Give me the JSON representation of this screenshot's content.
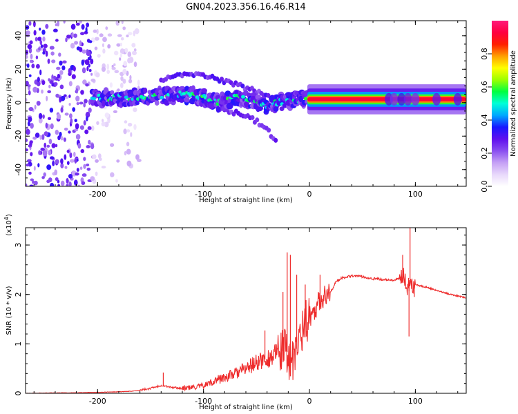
{
  "title": "GN04.2023.356.16.46.R14",
  "chart_data": [
    {
      "type": "heatmap",
      "xlabel": "Height of straight line (km)",
      "ylabel": "Frequency (Hz)",
      "xlim": [
        -268,
        148
      ],
      "ylim": [
        -50,
        49
      ],
      "x_ticks": [
        -200,
        -100,
        0,
        100
      ],
      "x_tick_labels": [
        "-200",
        "-100",
        "0",
        "100"
      ],
      "y_ticks": [
        -40,
        -20,
        0,
        20,
        40
      ],
      "y_tick_labels": [
        "-40",
        "-20",
        "0",
        "20",
        "40"
      ],
      "colorbar": {
        "label": "Normalized spectral amplitude",
        "range": [
          0,
          1
        ],
        "ticks": [
          0.0,
          0.2,
          0.4,
          0.6,
          0.8
        ],
        "tick_labels": [
          "0.0",
          "0.2",
          "0.4",
          "0.6",
          "0.8"
        ],
        "colormap_stops": [
          "#ffffff",
          "#e8d8fb",
          "#c5a0f5",
          "#8a4ff0",
          "#6010ee",
          "#1818ff",
          "#00a8ff",
          "#00ffd8",
          "#00ff40",
          "#9cff00",
          "#ffff00",
          "#ffa000",
          "#ff2000",
          "#ff0040",
          "#ff1a7a"
        ]
      },
      "features": [
        {
          "name": "scatter_noise",
          "x_range": [
            -268,
            -160
          ],
          "freq_range": [
            -50,
            49
          ],
          "amplitude": 0.1
        },
        {
          "name": "main_band",
          "points": [
            [
              -205,
              3
            ],
            [
              -180,
              3
            ],
            [
              -150,
              4
            ],
            [
              -120,
              5
            ],
            [
              -100,
              3
            ],
            [
              -85,
              0
            ],
            [
              -70,
              3
            ],
            [
              -55,
              1
            ],
            [
              -45,
              -1
            ],
            [
              -38,
              -3
            ],
            [
              -32,
              0
            ],
            [
              -20,
              1
            ],
            [
              -5,
              2
            ],
            [
              0,
              2
            ],
            [
              40,
              2
            ],
            [
              148,
              2
            ]
          ],
          "amplitude": [
            0.25,
            0.5,
            0.9
          ]
        },
        {
          "name": "upper_arc",
          "points": [
            [
              -140,
              14
            ],
            [
              -120,
              17
            ],
            [
              -100,
              16
            ],
            [
              -80,
              13
            ],
            [
              -60,
              9
            ],
            [
              -45,
              6
            ],
            [
              -35,
              3
            ]
          ],
          "amplitude": 0.25
        },
        {
          "name": "lower_arc",
          "points": [
            [
              -100,
              0
            ],
            [
              -80,
              -4
            ],
            [
              -60,
              -8
            ],
            [
              -45,
              -13
            ],
            [
              -35,
              -20
            ],
            [
              -30,
              -23
            ]
          ],
          "amplitude": 0.25
        }
      ]
    },
    {
      "type": "line",
      "xlabel": "Height of straight line (km)",
      "ylabel": "SNR (10 * v/v)",
      "y_multiplier_label": "(x10",
      "y_multiplier_exp": "4",
      "y_multiplier_close": ")",
      "xlim": [
        -268,
        148
      ],
      "ylim": [
        0,
        3.35
      ],
      "x_ticks": [
        -200,
        -100,
        0,
        100
      ],
      "x_tick_labels": [
        "-200",
        "-100",
        "0",
        "100"
      ],
      "y_ticks": [
        0,
        1,
        2,
        3
      ],
      "y_tick_labels": [
        "0",
        "1",
        "2",
        "3"
      ],
      "line_color": "#ee2b2b",
      "x": [
        -268,
        -250,
        -220,
        -200,
        -180,
        -170,
        -160,
        -150,
        -140,
        -130,
        -120,
        -110,
        -100,
        -90,
        -80,
        -70,
        -60,
        -50,
        -40,
        -30,
        -25,
        -22,
        -19,
        -15,
        -10,
        -5,
        0,
        5,
        10,
        20,
        25,
        30,
        40,
        50,
        60,
        70,
        80,
        85,
        88,
        90,
        92,
        95,
        98,
        100,
        105,
        110,
        120,
        130,
        148
      ],
      "y": [
        0.0,
        0.005,
        0.01,
        0.02,
        0.03,
        0.04,
        0.06,
        0.1,
        0.16,
        0.12,
        0.1,
        0.12,
        0.15,
        0.25,
        0.32,
        0.4,
        0.5,
        0.62,
        0.7,
        0.8,
        0.85,
        0.9,
        0.7,
        0.6,
        1.1,
        1.4,
        1.55,
        1.7,
        1.9,
        2.05,
        2.25,
        2.33,
        2.38,
        2.36,
        2.32,
        2.3,
        2.28,
        2.32,
        2.4,
        2.35,
        2.1,
        2.3,
        2.15,
        2.2,
        2.17,
        2.15,
        2.08,
        2.02,
        1.93
      ],
      "spikes": [
        [
          -138,
          0.42
        ],
        [
          -42,
          1.27
        ],
        [
          -25,
          2.05
        ],
        [
          -21,
          2.85
        ],
        [
          -18,
          2.8
        ],
        [
          -12,
          2.4
        ],
        [
          -4,
          2.2
        ],
        [
          10,
          2.4
        ],
        [
          88,
          2.8
        ],
        [
          95,
          3.35
        ],
        [
          94,
          1.15
        ],
        [
          99,
          1.95
        ]
      ]
    }
  ]
}
